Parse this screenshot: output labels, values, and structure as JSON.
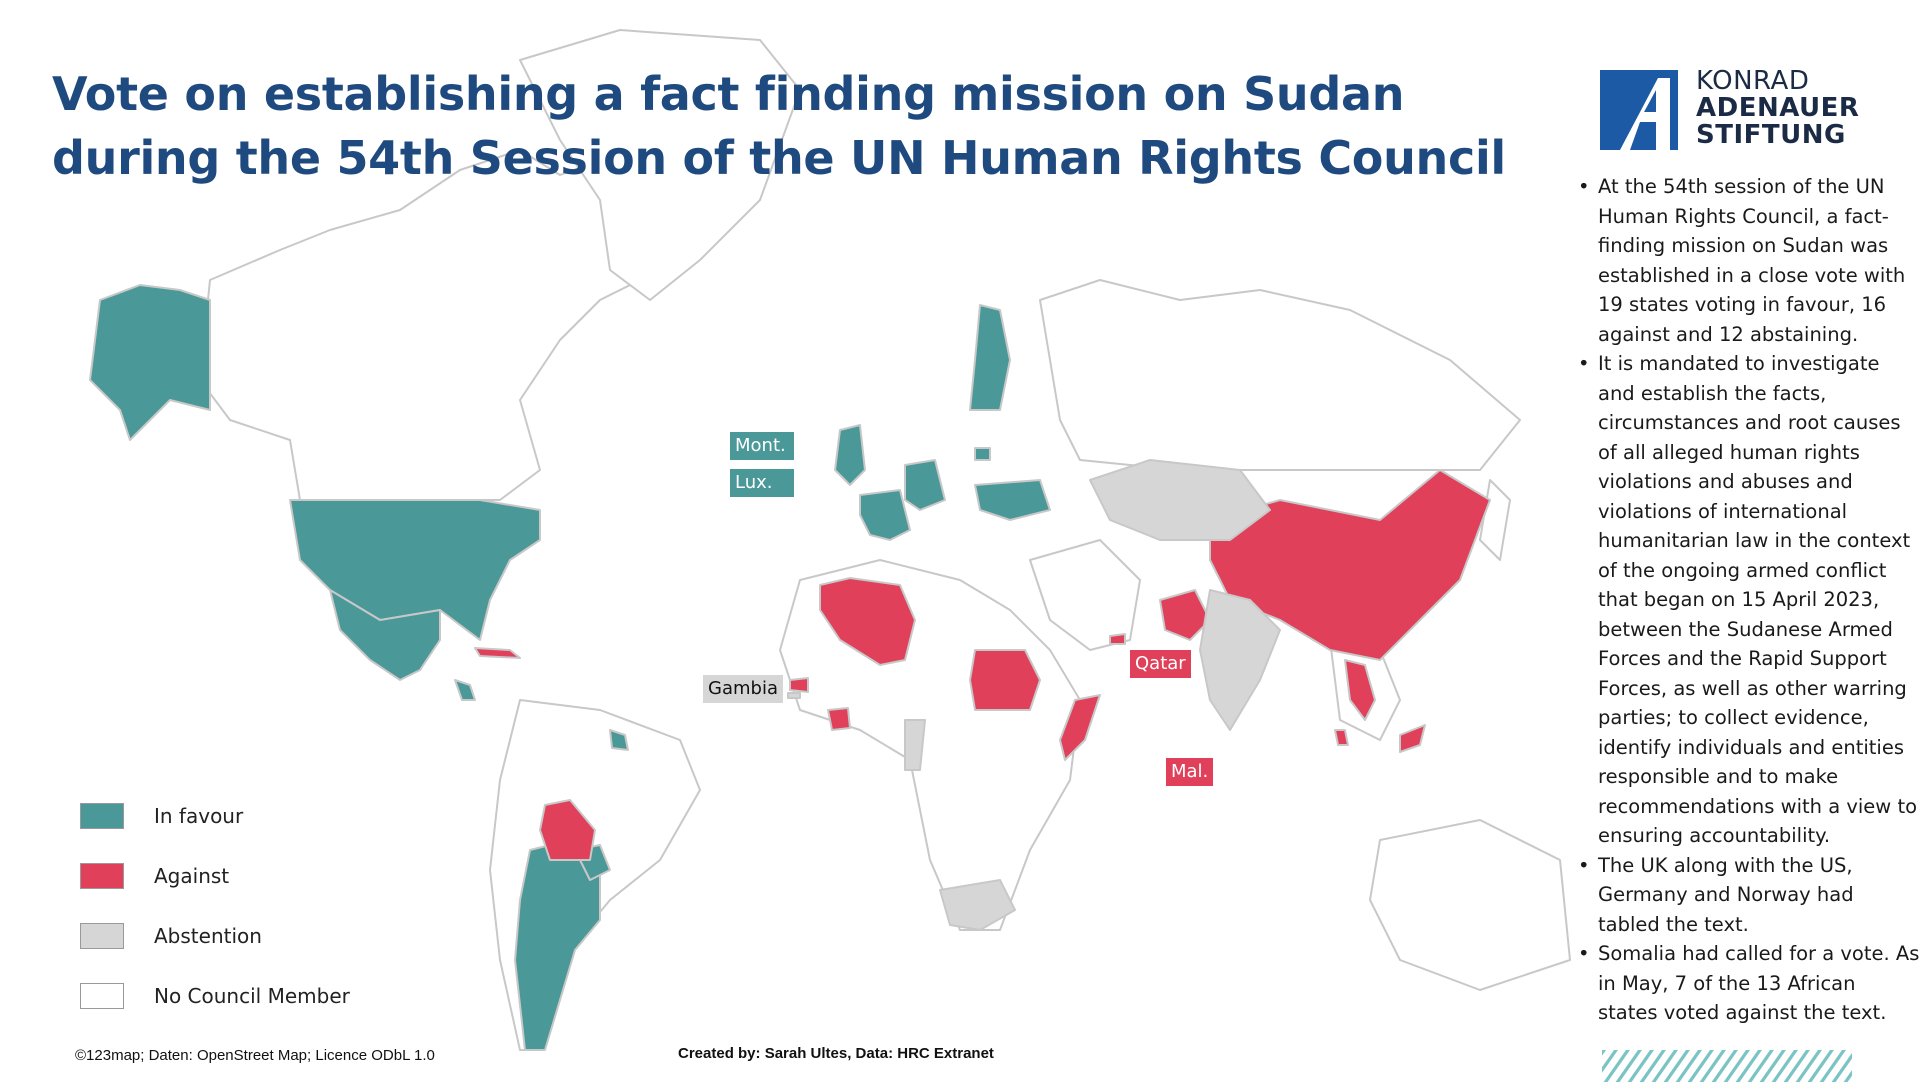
{
  "title": {
    "line1": "Vote on establishing a fact finding mission on Sudan",
    "line2": "during the 54th Session of the UN Human Rights Council"
  },
  "logo": {
    "line1": "KONRAD",
    "line2": "ADENAUER",
    "line3": "STIFTUNG"
  },
  "colors": {
    "in_favour": "#4b9898",
    "against": "#e0405a",
    "abstention": "#d6d6d6",
    "no_member": "#ffffff",
    "title": "#1f4a7f",
    "border": "#c8c8c8"
  },
  "legend": [
    {
      "key": "in_favour",
      "label": "In favour"
    },
    {
      "key": "against",
      "label": "Against"
    },
    {
      "key": "abstention",
      "label": "Abstention"
    },
    {
      "key": "no_member",
      "label": "No Council Member"
    }
  ],
  "map_labels": [
    {
      "text": "Mont.",
      "vote": "in_favour"
    },
    {
      "text": "Lux.",
      "vote": "in_favour"
    },
    {
      "text": "Gambia",
      "vote": "abstention"
    },
    {
      "text": "Qatar",
      "vote": "against"
    },
    {
      "text": "Mal.",
      "vote": "against"
    }
  ],
  "notes": [
    "At the 54th session of the UN Human Rights Council, a fact-finding mission on Sudan was established in a close vote with 19 states voting in favour, 16 against and 12 abstaining.",
    "It is mandated to investigate and establish the facts, circumstances and root causes of all alleged human rights violations and abuses and violations of international humanitarian law in the context of the ongoing armed conflict that began on 15 April 2023, between the Sudanese Armed Forces and the Rapid Support Forces, as well as other warring parties; to collect evidence, identify individuals and entities responsible and to make recommendations with a view to ensuring accountability.",
    "The UK along with the US, Germany and Norway had tabled the text.",
    "Somalia had called for a vote. As in May, 7 of the 13 African states voted against the text."
  ],
  "credits": {
    "left": "©123map; Daten: OpenStreet Map; Licence ODbL 1.0",
    "center": "Created by: Sarah Ultes, Data: HRC Extranet"
  }
}
